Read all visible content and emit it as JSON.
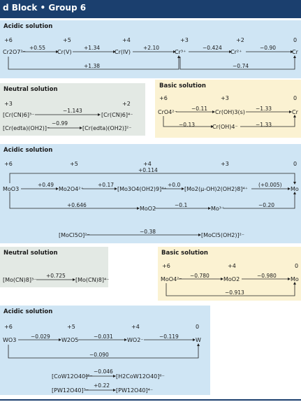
{
  "header": {
    "title": "d Block • Group 6"
  },
  "cr_acidic": {
    "title": "Acidic solution",
    "ox": [
      "+6",
      "+5",
      "+4",
      "+3",
      "+2",
      "0"
    ],
    "species": [
      "Cr2O7²⁻",
      "Cr(V)",
      "Cr(IV)",
      "Cr³⁺",
      "Cr²⁺",
      "Cr"
    ],
    "potentials": [
      "+0.55",
      "+1.34",
      "+2.10",
      "−0.424",
      "−0.90"
    ],
    "bridge1": "+1.38",
    "bridge2": "−0.74"
  },
  "cr_neutral": {
    "title": "Neutral solution",
    "ox": [
      "+3",
      "+2"
    ],
    "row1": {
      "from": "[Cr(CN)6]³⁻",
      "to": "[Cr(CN)6]⁴⁻",
      "e": "−1.143"
    },
    "row2": {
      "from": "[Cr(edta)(OH2)]⁻",
      "to": "[Cr(edta)(OH2)]²⁻",
      "e": "−0.99"
    }
  },
  "cr_basic": {
    "title": "Basic solution",
    "ox": [
      "+6",
      "+3",
      "0"
    ],
    "species": [
      "CrO4²⁻",
      "Cr(OH)3(s)",
      "Cr"
    ],
    "potentials": [
      "−0.11",
      "−1.33"
    ],
    "row2": {
      "mid": "Cr(OH)4⁻",
      "e1": "−0.13",
      "e2": "−1.33"
    }
  },
  "mo_acidic": {
    "title": "Acidic solution",
    "ox": [
      "+6",
      "+5",
      "+4",
      "+3",
      "0"
    ],
    "top_bridge": "+0.114",
    "row1_species": [
      "MoO3",
      "Mo2O4²⁺",
      "[Mo3O4(OH2)9]⁴⁺",
      "[Mo2(μ-OH)2(OH2)8]⁴⁺",
      "Mo"
    ],
    "row1_potentials": [
      "+0.49",
      "+0.17",
      "+0.0",
      "(+0.005)"
    ],
    "row2_species": [
      "MoO2",
      "Mo³⁺"
    ],
    "row2_potentials": [
      "+0.646",
      "−0.1",
      "−0.20"
    ],
    "row3": {
      "from": "[MoCl5O]²⁻",
      "to": "[MoCl5(OH2)]²⁻",
      "e": "−0.38"
    }
  },
  "mo_neutral": {
    "title": "Neutral solution",
    "row1": {
      "from": "[Mo(CN)8]³⁻",
      "to": "[Mo(CN)8]⁴⁻",
      "e": "+0.725"
    }
  },
  "mo_basic": {
    "title": "Basic solution",
    "ox": [
      "+6",
      "+4",
      "0"
    ],
    "species": [
      "MoO4²⁻",
      "MoO2",
      "Mo"
    ],
    "potentials": [
      "−0.780",
      "−0.980"
    ],
    "bridge": "−0.913"
  },
  "w_acidic": {
    "title": "Acidic solution",
    "ox": [
      "+6",
      "+5",
      "+4",
      "0"
    ],
    "species": [
      "WO3",
      "W2O5",
      "WO2⁻",
      "W"
    ],
    "potentials": [
      "−0.029",
      "−0.031",
      "−0.119"
    ],
    "bridge": "−0.090",
    "row2": {
      "from": "[CoW12O40]⁶⁻",
      "to": "[H2CoW12O40]⁶⁻",
      "e": "−0.046"
    },
    "row3": {
      "from": "[PW12O40]³⁻",
      "to": "[PW12O40]⁴⁻",
      "e": "+0.22"
    }
  }
}
